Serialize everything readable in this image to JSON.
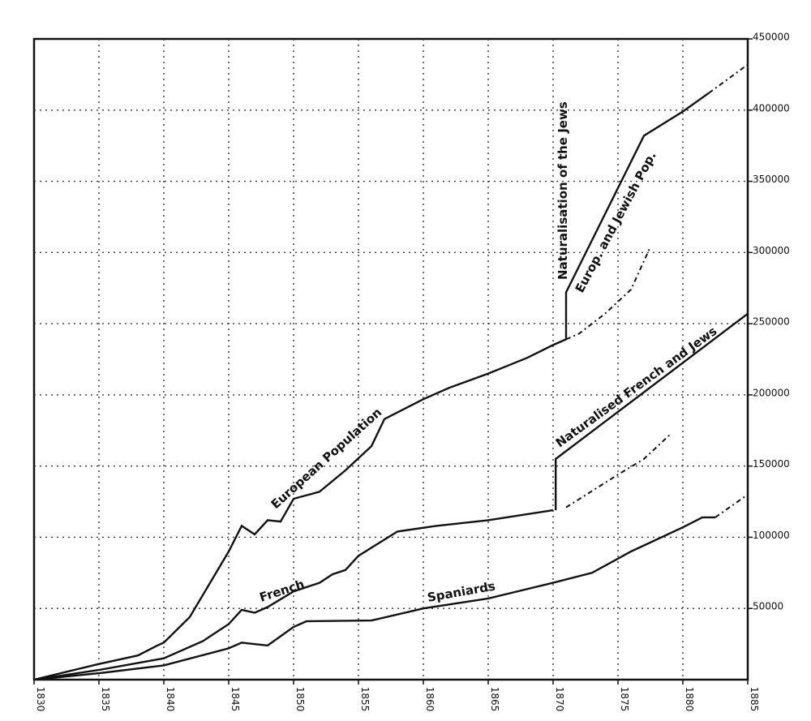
{
  "chart_data": {
    "type": "line",
    "xlim": [
      1830,
      1885
    ],
    "xticks": [
      1830,
      1835,
      1840,
      1845,
      1850,
      1855,
      1860,
      1865,
      1870,
      1875,
      1880,
      1885
    ],
    "ylim": [
      0,
      450000
    ],
    "yticks": [
      50000,
      100000,
      150000,
      200000,
      250000,
      300000,
      350000,
      400000,
      450000
    ],
    "grid": true,
    "series": [
      {
        "name": "European Population",
        "color": "#111111",
        "dash": false,
        "x": [
          1830,
          1835,
          1838,
          1839.5,
          1840,
          1842,
          1843.5,
          1845,
          1846,
          1847,
          1848,
          1849,
          1850,
          1852,
          1854,
          1856,
          1857,
          1860,
          1862,
          1865,
          1868,
          1870,
          1871
        ],
        "values": [
          0,
          11000,
          17000,
          24000,
          26000,
          44000,
          67000,
          90000,
          108000,
          102000,
          112000,
          111000,
          127000,
          132000,
          147000,
          164000,
          183000,
          197000,
          205000,
          215000,
          226000,
          235000,
          239000
        ]
      },
      {
        "color": "#111111",
        "dash": true,
        "x": [
          1871,
          1872,
          1874,
          1876,
          1877,
          1877.5
        ],
        "values": [
          239000,
          243000,
          257000,
          274000,
          294000,
          304000
        ]
      },
      {
        "name": "Europ. and Jewish Pop.",
        "color": "#111111",
        "dash": false,
        "x": [
          1871,
          1871,
          1877,
          1880,
          1882
        ],
        "values": [
          239000,
          272000,
          382000,
          399000,
          412000
        ]
      },
      {
        "color": "#111111",
        "dash": true,
        "x": [
          1882,
          1885
        ],
        "values": [
          412000,
          432000
        ]
      },
      {
        "name": "French",
        "color": "#111111",
        "dash": false,
        "x": [
          1830,
          1835,
          1840,
          1843,
          1845,
          1846,
          1847,
          1848,
          1850,
          1852,
          1853,
          1854,
          1855,
          1858,
          1861,
          1865,
          1870
        ],
        "values": [
          0,
          6800,
          15000,
          27000,
          39000,
          49000,
          47000,
          51000,
          62000,
          68000,
          74000,
          77000,
          87000,
          104000,
          108000,
          112000,
          119000
        ]
      },
      {
        "color": "#111111",
        "dash": true,
        "x": [
          1871,
          1875,
          1877,
          1879
        ],
        "values": [
          121000,
          144000,
          155000,
          172000
        ]
      },
      {
        "name": "Naturalised French and Jews",
        "color": "#111111",
        "dash": false,
        "x": [
          1870.2,
          1870.2,
          1885
        ],
        "values": [
          119000,
          155000,
          257000
        ]
      },
      {
        "name": "Spaniards",
        "color": "#111111",
        "dash": false,
        "x": [
          1830,
          1835,
          1840,
          1845,
          1846,
          1848,
          1850,
          1851,
          1856,
          1860,
          1865,
          1870,
          1873,
          1876,
          1880,
          1881.5,
          1882.5
        ],
        "values": [
          0,
          4500,
          10000,
          22000,
          26000,
          24000,
          37000,
          41000,
          41500,
          50000,
          57000,
          68000,
          75000,
          90000,
          107000,
          114000,
          114000
        ]
      },
      {
        "color": "#111111",
        "dash": true,
        "x": [
          1882.5,
          1885
        ],
        "values": [
          114000,
          130000
        ]
      }
    ],
    "annotations": [
      {
        "text": "Naturalisation of the Jews"
      }
    ]
  }
}
